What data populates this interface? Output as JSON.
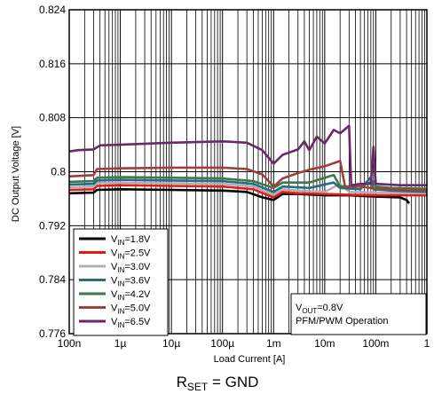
{
  "chart_data": {
    "type": "line",
    "title": "",
    "xlabel": "Load Current [A]",
    "ylabel": "DC Output Voltage [V]",
    "xscale": "log",
    "xlim": [
      1e-07,
      1
    ],
    "ylim": [
      0.776,
      0.824
    ],
    "x_ticks": [
      1e-07,
      1e-06,
      1e-05,
      0.0001,
      0.001,
      0.01,
      0.1,
      1
    ],
    "x_tick_labels": [
      "100n",
      "1µ",
      "10µ",
      "100µ",
      "1m",
      "10m",
      "100m",
      "1"
    ],
    "y_ticks": [
      0.776,
      0.784,
      0.792,
      0.8,
      0.808,
      0.816,
      0.824
    ],
    "y_tick_labels": [
      "0.776",
      "0.784",
      "0.792",
      "0.8",
      "0.808",
      "0.816",
      "0.824"
    ],
    "grid": true,
    "legend_position": "bottom-left",
    "series": [
      {
        "name": "V_IN=1.8V",
        "label_main": "V",
        "label_sub": "IN",
        "label_rest": "=1.8V",
        "color": "#000000",
        "points": [
          [
            1e-07,
            0.7968
          ],
          [
            3e-07,
            0.7969
          ],
          [
            3.5e-07,
            0.7973
          ],
          [
            1e-06,
            0.7974
          ],
          [
            1e-05,
            0.7973
          ],
          [
            0.0001,
            0.7972
          ],
          [
            0.0003,
            0.797
          ],
          [
            0.0006,
            0.7962
          ],
          [
            0.001,
            0.7958
          ],
          [
            0.0015,
            0.7967
          ],
          [
            0.003,
            0.7967
          ],
          [
            0.01,
            0.7965
          ],
          [
            0.03,
            0.7965
          ],
          [
            0.1,
            0.7963
          ],
          [
            0.3,
            0.7962
          ],
          [
            0.4,
            0.7958
          ],
          [
            0.45,
            0.7953
          ]
        ]
      },
      {
        "name": "V_IN=2.5V",
        "label_main": "V",
        "label_sub": "IN",
        "label_rest": "=2.5V",
        "color": "#e41a1c",
        "points": [
          [
            1e-07,
            0.7973
          ],
          [
            3e-07,
            0.7974
          ],
          [
            3.5e-07,
            0.7979
          ],
          [
            1e-06,
            0.798
          ],
          [
            1e-05,
            0.7979
          ],
          [
            0.0001,
            0.7978
          ],
          [
            0.0004,
            0.7974
          ],
          [
            0.001,
            0.7962
          ],
          [
            0.0015,
            0.797
          ],
          [
            0.003,
            0.7968
          ],
          [
            0.01,
            0.7967
          ],
          [
            0.03,
            0.7966
          ],
          [
            0.1,
            0.7965
          ],
          [
            1,
            0.7965
          ]
        ]
      },
      {
        "name": "V_IN=3.0V",
        "label_main": "V",
        "label_sub": "IN",
        "label_rest": "=3.0V",
        "color": "#b0b0b0",
        "points": [
          [
            1e-07,
            0.7977
          ],
          [
            3e-07,
            0.7978
          ],
          [
            3.5e-07,
            0.7983
          ],
          [
            1e-06,
            0.7984
          ],
          [
            1e-05,
            0.7983
          ],
          [
            0.0001,
            0.7982
          ],
          [
            0.0004,
            0.7978
          ],
          [
            0.001,
            0.7966
          ],
          [
            0.0015,
            0.7974
          ],
          [
            0.003,
            0.7972
          ],
          [
            0.01,
            0.797
          ],
          [
            0.02,
            0.7982
          ],
          [
            0.03,
            0.797
          ],
          [
            0.1,
            0.7969
          ],
          [
            1,
            0.7968
          ]
        ]
      },
      {
        "name": "V_IN=3.6V",
        "label_main": "V",
        "label_sub": "IN",
        "label_rest": "=3.6V",
        "color": "#2a6b7f",
        "points": [
          [
            1e-07,
            0.7981
          ],
          [
            3e-07,
            0.7982
          ],
          [
            3.5e-07,
            0.7987
          ],
          [
            1e-06,
            0.7988
          ],
          [
            1e-05,
            0.7987
          ],
          [
            0.0001,
            0.7986
          ],
          [
            0.0004,
            0.7982
          ],
          [
            0.001,
            0.797
          ],
          [
            0.0015,
            0.7978
          ],
          [
            0.005,
            0.7976
          ],
          [
            0.015,
            0.7984
          ],
          [
            0.02,
            0.7976
          ],
          [
            0.05,
            0.7974
          ],
          [
            0.08,
            0.7992
          ],
          [
            0.09,
            0.7974
          ],
          [
            0.2,
            0.7972
          ],
          [
            1,
            0.797
          ]
        ]
      },
      {
        "name": "V_IN=4.2V",
        "label_main": "V",
        "label_sub": "IN",
        "label_rest": "=4.2V",
        "color": "#3a7a4a",
        "points": [
          [
            1e-07,
            0.7985
          ],
          [
            3e-07,
            0.7986
          ],
          [
            3.5e-07,
            0.7991
          ],
          [
            1e-06,
            0.7992
          ],
          [
            1e-05,
            0.7991
          ],
          [
            0.0001,
            0.799
          ],
          [
            0.0004,
            0.7986
          ],
          [
            0.001,
            0.7976
          ],
          [
            0.0015,
            0.7984
          ],
          [
            0.005,
            0.7984
          ],
          [
            0.015,
            0.7995
          ],
          [
            0.02,
            0.7978
          ],
          [
            0.05,
            0.7978
          ],
          [
            0.09,
            0.7986
          ],
          [
            0.1,
            0.7978
          ],
          [
            0.2,
            0.7976
          ],
          [
            1,
            0.7975
          ]
        ]
      },
      {
        "name": "V_IN=5.0V",
        "label_main": "V",
        "label_sub": "IN",
        "label_rest": "=5.0V",
        "color": "#a0403a",
        "points": [
          [
            1e-07,
            0.7993
          ],
          [
            3e-07,
            0.7995
          ],
          [
            3.5e-07,
            0.8004
          ],
          [
            1e-06,
            0.8005
          ],
          [
            1e-05,
            0.8006
          ],
          [
            0.0001,
            0.8006
          ],
          [
            0.0003,
            0.8004
          ],
          [
            0.0006,
            0.7996
          ],
          [
            0.001,
            0.7978
          ],
          [
            0.0015,
            0.799
          ],
          [
            0.003,
            0.7998
          ],
          [
            0.005,
            0.8003
          ],
          [
            0.01,
            0.8008
          ],
          [
            0.02,
            0.8016
          ],
          [
            0.025,
            0.7978
          ],
          [
            0.05,
            0.7978
          ],
          [
            0.1,
            0.7975
          ],
          [
            1,
            0.7972
          ]
        ]
      },
      {
        "name": "V_IN=6.5V",
        "label_main": "V",
        "label_sub": "IN",
        "label_rest": "=6.5V",
        "color": "#6a2a6a",
        "points": [
          [
            1e-07,
            0.803
          ],
          [
            1.5e-07,
            0.8032
          ],
          [
            3e-07,
            0.8033
          ],
          [
            4e-07,
            0.8039
          ],
          [
            1e-06,
            0.804
          ],
          [
            1e-05,
            0.8043
          ],
          [
            0.0001,
            0.8045
          ],
          [
            0.0003,
            0.8043
          ],
          [
            0.0006,
            0.8032
          ],
          [
            0.001,
            0.8012
          ],
          [
            0.0015,
            0.8025
          ],
          [
            0.003,
            0.8033
          ],
          [
            0.004,
            0.8045
          ],
          [
            0.005,
            0.8032
          ],
          [
            0.007,
            0.8052
          ],
          [
            0.01,
            0.8042
          ],
          [
            0.015,
            0.8062
          ],
          [
            0.02,
            0.8057
          ],
          [
            0.03,
            0.8068
          ],
          [
            0.033,
            0.798
          ],
          [
            0.05,
            0.7982
          ],
          [
            0.08,
            0.7982
          ],
          [
            0.09,
            0.8037
          ],
          [
            0.1,
            0.7982
          ],
          [
            0.3,
            0.798
          ],
          [
            1,
            0.798
          ]
        ]
      }
    ],
    "annotation": {
      "line1_main": "V",
      "line1_sub": "OUT",
      "line1_rest": "=0.8V",
      "line2": "PFM/PWM Operation"
    }
  },
  "caption": {
    "main": "R",
    "sub": "SET",
    "rest": " = GND"
  }
}
